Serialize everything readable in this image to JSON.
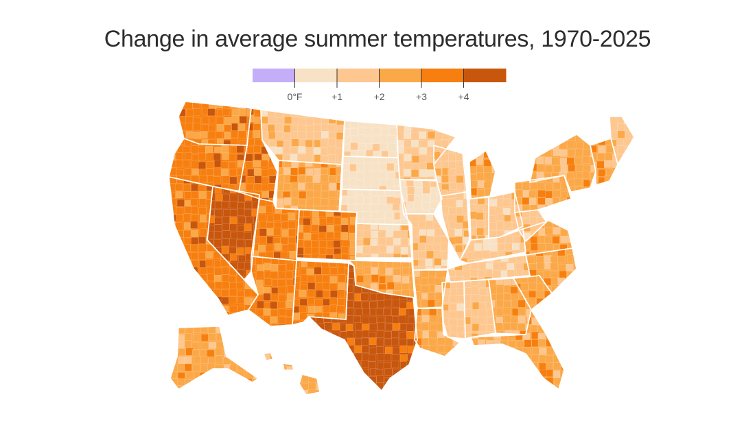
{
  "title": "Change in average summer temperatures, 1970-2025",
  "legend": {
    "bins": [
      {
        "color": "#c3aef7"
      },
      {
        "color": "#f8e2c6"
      },
      {
        "color": "#fdc78f"
      },
      {
        "color": "#fba848"
      },
      {
        "color": "#f77f0f"
      },
      {
        "color": "#c8560d"
      }
    ],
    "tick_labels": [
      "0°F",
      "+1",
      "+2",
      "+3",
      "+4"
    ]
  },
  "map": {
    "states": [
      {
        "name": "Washington",
        "bin": 4
      },
      {
        "name": "Oregon",
        "bin": 4
      },
      {
        "name": "California",
        "bin": 4
      },
      {
        "name": "Nevada",
        "bin": 5
      },
      {
        "name": "Idaho",
        "bin": 4
      },
      {
        "name": "Montana",
        "bin": 2
      },
      {
        "name": "Wyoming",
        "bin": 3
      },
      {
        "name": "Utah",
        "bin": 4
      },
      {
        "name": "Arizona",
        "bin": 4
      },
      {
        "name": "Colorado",
        "bin": 4
      },
      {
        "name": "New Mexico",
        "bin": 4
      },
      {
        "name": "Texas",
        "bin": 5
      },
      {
        "name": "North Dakota",
        "bin": 1
      },
      {
        "name": "South Dakota",
        "bin": 1
      },
      {
        "name": "Nebraska",
        "bin": 1
      },
      {
        "name": "Kansas",
        "bin": 2
      },
      {
        "name": "Oklahoma",
        "bin": 3
      },
      {
        "name": "Minnesota",
        "bin": 2
      },
      {
        "name": "Iowa",
        "bin": 1
      },
      {
        "name": "Missouri",
        "bin": 2
      },
      {
        "name": "Arkansas",
        "bin": 3
      },
      {
        "name": "Louisiana",
        "bin": 3
      },
      {
        "name": "Wisconsin",
        "bin": 2
      },
      {
        "name": "Illinois",
        "bin": 2
      },
      {
        "name": "Michigan",
        "bin": 3
      },
      {
        "name": "Indiana",
        "bin": 2
      },
      {
        "name": "Ohio",
        "bin": 2
      },
      {
        "name": "Kentucky",
        "bin": 2
      },
      {
        "name": "Tennessee",
        "bin": 2
      },
      {
        "name": "Mississippi",
        "bin": 2
      },
      {
        "name": "Alabama",
        "bin": 2
      },
      {
        "name": "Georgia",
        "bin": 3
      },
      {
        "name": "Florida",
        "bin": 3
      },
      {
        "name": "South Carolina",
        "bin": 3
      },
      {
        "name": "North Carolina",
        "bin": 3
      },
      {
        "name": "Virginia",
        "bin": 3
      },
      {
        "name": "West Virginia",
        "bin": 2
      },
      {
        "name": "Pennsylvania",
        "bin": 3
      },
      {
        "name": "New York",
        "bin": 3
      },
      {
        "name": "New England",
        "bin": 3
      },
      {
        "name": "Maine",
        "bin": 2
      },
      {
        "name": "Alaska",
        "bin": 3
      },
      {
        "name": "Hawaii",
        "bin": 3
      }
    ]
  }
}
